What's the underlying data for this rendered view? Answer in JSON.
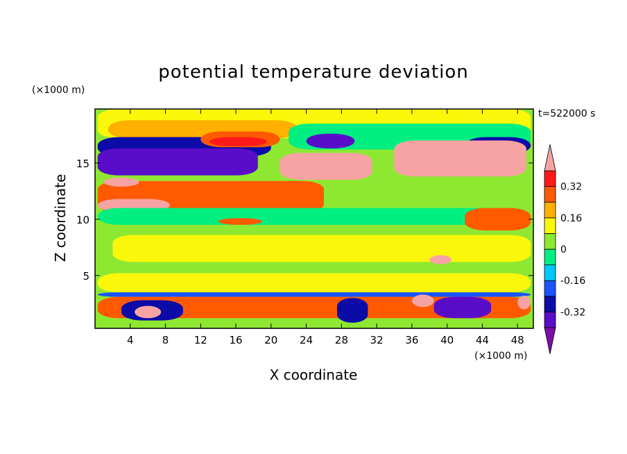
{
  "chart_data": {
    "type": "heatmap",
    "title": "potential temperature deviation",
    "time_label": "t=522000 s",
    "xlabel": "X coordinate",
    "ylabel": "Z coordinate",
    "x_unit": "(×1000 m)",
    "y_unit": "(×1000 m)",
    "xlim": [
      0,
      49.8
    ],
    "ylim": [
      0.3,
      19.8
    ],
    "x_ticks": [
      4,
      8,
      12,
      16,
      20,
      24,
      28,
      32,
      36,
      40,
      44,
      48
    ],
    "y_ticks": [
      5,
      10,
      15
    ],
    "colorbar": {
      "levels": [
        -0.4,
        -0.32,
        -0.24,
        -0.16,
        -0.08,
        0,
        0.08,
        0.16,
        0.24,
        0.32,
        0.4
      ],
      "tick_labels": [
        "0.32",
        "0.16",
        "0",
        "-0.16",
        "-0.32"
      ],
      "tick_values": [
        0.32,
        0.16,
        0,
        -0.16,
        -0.32
      ],
      "colors_low_to_high": [
        "#7b0ea8",
        "#5a0dc8",
        "#0b0ba8",
        "#1a53ff",
        "#00c8ff",
        "#00ef80",
        "#8ee832",
        "#fbf70a",
        "#ffb000",
        "#ff5a00",
        "#ff1a1a",
        "#f7a3a3"
      ]
    },
    "regions": [
      {
        "level": 0.08,
        "x": [
          0.3,
          49.5
        ],
        "z": [
          17.2,
          19.8
        ]
      },
      {
        "level": 0.16,
        "x": [
          1.5,
          23
        ],
        "z": [
          17.2,
          18.8
        ]
      },
      {
        "level": -0.08,
        "x": [
          22,
          49.5
        ],
        "z": [
          16.2,
          18.5
        ]
      },
      {
        "level": -0.32,
        "x": [
          0.3,
          20
        ],
        "z": [
          15.6,
          17.3
        ]
      },
      {
        "level": 0.24,
        "x": [
          12,
          21
        ],
        "z": [
          16.4,
          17.8
        ]
      },
      {
        "level": 0.32,
        "x": [
          13,
          19.5
        ],
        "z": [
          16.5,
          17.3
        ]
      },
      {
        "level": -0.4,
        "x": [
          24,
          29.5
        ],
        "z": [
          16.3,
          17.6
        ]
      },
      {
        "level": -0.32,
        "x": [
          42,
          49.5
        ],
        "z": [
          15.8,
          17.3
        ]
      },
      {
        "level": -0.4,
        "x": [
          0.3,
          18.5
        ],
        "z": [
          13.9,
          16.3
        ]
      },
      {
        "level": 0.4,
        "x": [
          21,
          31.5
        ],
        "z": [
          13.5,
          15.9
        ]
      },
      {
        "level": 0.4,
        "x": [
          34,
          49
        ],
        "z": [
          13.8,
          17.0
        ]
      },
      {
        "level": 0.24,
        "x": [
          0.3,
          26
        ],
        "z": [
          10.6,
          13.4
        ]
      },
      {
        "level": 0.4,
        "x": [
          0.3,
          8.5
        ],
        "z": [
          10.7,
          11.8
        ]
      },
      {
        "level": 0.4,
        "x": [
          1,
          5
        ],
        "z": [
          12.9,
          13.7
        ]
      },
      {
        "level": -0.08,
        "x": [
          0.3,
          49.5
        ],
        "z": [
          9.5,
          11.0
        ]
      },
      {
        "level": 0.24,
        "x": [
          14,
          19
        ],
        "z": [
          9.5,
          10.1
        ]
      },
      {
        "level": 0.24,
        "x": [
          42,
          49.5
        ],
        "z": [
          9.0,
          11.0
        ]
      },
      {
        "level": 0.08,
        "x": [
          2,
          49.5
        ],
        "z": [
          6.2,
          8.6
        ]
      },
      {
        "level": 0.4,
        "x": [
          38,
          40.5
        ],
        "z": [
          6.0,
          6.8
        ]
      },
      {
        "level": 0.08,
        "x": [
          0.3,
          49.5
        ],
        "z": [
          3.5,
          5.2
        ]
      },
      {
        "level": -0.24,
        "x": [
          0.3,
          49.5
        ],
        "z": [
          3.1,
          3.5
        ]
      },
      {
        "level": 0.24,
        "x": [
          0.3,
          49.5
        ],
        "z": [
          1.2,
          3.1
        ]
      },
      {
        "level": -0.32,
        "x": [
          3,
          10
        ],
        "z": [
          1.0,
          2.8
        ]
      },
      {
        "level": 0.4,
        "x": [
          4.5,
          7.5
        ],
        "z": [
          1.2,
          2.3
        ]
      },
      {
        "level": -0.32,
        "x": [
          27.5,
          31
        ],
        "z": [
          0.8,
          3.0
        ]
      },
      {
        "level": -0.4,
        "x": [
          38.5,
          45
        ],
        "z": [
          1.2,
          3.1
        ]
      },
      {
        "level": 0.4,
        "x": [
          36,
          38.5
        ],
        "z": [
          2.2,
          3.3
        ]
      },
      {
        "level": 0.4,
        "x": [
          48,
          49.5
        ],
        "z": [
          2.0,
          3.2
        ]
      }
    ]
  }
}
